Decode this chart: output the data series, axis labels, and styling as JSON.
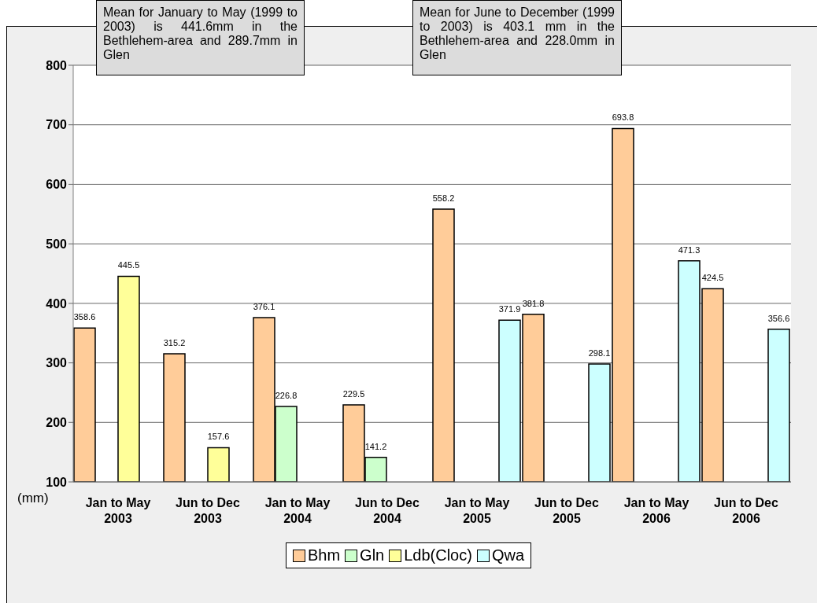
{
  "chart_data": {
    "type": "bar",
    "ylabel": "(mm)",
    "annotations": [
      "Mean for January to May (1999 to 2003) is 441.6mm in the Bethlehem-area and 289.7mm in Glen",
      "Mean for June to December (1999 to 2003) is 403.1 mm in the Bethlehem-area and 228.0mm in Glen"
    ],
    "categories": [
      "Jan to May 2003",
      "Jun to Dec 2003",
      "Jan to May 2004",
      "Jun to Dec 2004",
      "Jan to May 2005",
      "Jun to Dec 2005",
      "Jan to May 2006",
      "Jun to Dec 2006"
    ],
    "series": [
      {
        "name": "Bhm",
        "color": "#ffcc99",
        "values": [
          358.6,
          315.2,
          376.1,
          229.5,
          558.2,
          381.8,
          693.8,
          424.5
        ]
      },
      {
        "name": "Gln",
        "color": "#ccffcc",
        "values": [
          null,
          null,
          226.8,
          141.2,
          null,
          null,
          null,
          null
        ]
      },
      {
        "name": "Ldb(Cloc)",
        "color": "#ffff99",
        "values": [
          445.5,
          157.6,
          null,
          null,
          null,
          null,
          null,
          null
        ]
      },
      {
        "name": "Qwa",
        "color": "#ccffff",
        "values": [
          null,
          null,
          null,
          null,
          371.9,
          298.1,
          471.3,
          356.6
        ]
      }
    ],
    "ylim": [
      100,
      800
    ],
    "yticks": [
      100,
      200,
      300,
      400,
      500,
      600,
      700,
      800
    ],
    "grid": "y",
    "legend": "bottom",
    "data_labels": true
  }
}
